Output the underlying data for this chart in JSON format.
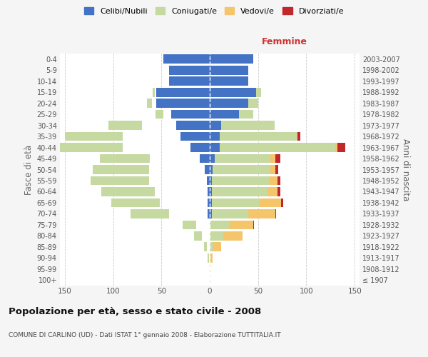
{
  "age_groups": [
    "100+",
    "95-99",
    "90-94",
    "85-89",
    "80-84",
    "75-79",
    "70-74",
    "65-69",
    "60-64",
    "55-59",
    "50-54",
    "45-49",
    "40-44",
    "35-39",
    "30-34",
    "25-29",
    "20-24",
    "15-19",
    "10-14",
    "5-9",
    "0-4"
  ],
  "birth_years": [
    "≤ 1907",
    "1908-1912",
    "1913-1917",
    "1918-1922",
    "1923-1927",
    "1928-1932",
    "1933-1937",
    "1938-1942",
    "1943-1947",
    "1948-1952",
    "1953-1957",
    "1958-1962",
    "1963-1967",
    "1968-1972",
    "1973-1977",
    "1978-1982",
    "1983-1987",
    "1988-1992",
    "1993-1997",
    "1998-2002",
    "2003-2007"
  ],
  "male_celibi": [
    0,
    0,
    0,
    0,
    0,
    0,
    2,
    2,
    2,
    3,
    5,
    10,
    20,
    30,
    35,
    40,
    55,
    55,
    42,
    42,
    48
  ],
  "male_coniugati": [
    0,
    0,
    1,
    3,
    8,
    14,
    40,
    50,
    55,
    60,
    58,
    52,
    70,
    60,
    35,
    8,
    5,
    2,
    0,
    0,
    0
  ],
  "male_vedovi": [
    0,
    0,
    0,
    1,
    4,
    5,
    5,
    3,
    2,
    1,
    1,
    1,
    1,
    0,
    0,
    0,
    0,
    0,
    0,
    0,
    0
  ],
  "male_divorziati": [
    0,
    0,
    0,
    0,
    0,
    0,
    0,
    1,
    3,
    3,
    2,
    4,
    8,
    2,
    1,
    1,
    0,
    0,
    0,
    0,
    0
  ],
  "female_nubili": [
    0,
    0,
    0,
    0,
    0,
    0,
    2,
    2,
    2,
    2,
    3,
    5,
    10,
    10,
    12,
    30,
    40,
    48,
    40,
    40,
    45
  ],
  "female_coniugate": [
    0,
    0,
    1,
    4,
    14,
    20,
    38,
    50,
    58,
    60,
    60,
    58,
    120,
    80,
    55,
    15,
    10,
    5,
    0,
    0,
    0
  ],
  "female_vedove": [
    0,
    1,
    2,
    8,
    20,
    25,
    28,
    22,
    10,
    8,
    5,
    5,
    2,
    1,
    0,
    0,
    0,
    0,
    0,
    0,
    0
  ],
  "female_divorziate": [
    0,
    0,
    0,
    0,
    0,
    1,
    1,
    2,
    3,
    3,
    3,
    5,
    8,
    3,
    0,
    0,
    0,
    0,
    0,
    0,
    0
  ],
  "colors": {
    "celibi_nubili": "#4472C4",
    "coniugati_e": "#C5D9A0",
    "vedovi_e": "#F5C56B",
    "divorziati_e": "#C0282C"
  },
  "title": "Popolazione per età, sesso e stato civile - 2008",
  "subtitle": "COMUNE DI CARLINO (UD) - Dati ISTAT 1° gennaio 2008 - Elaborazione TUTTITALIA.IT",
  "xlabel_right": "Femmine",
  "ylabel_left": "Fasce di età",
  "ylabel_right": "Anni di nascita",
  "xlim": 155,
  "bg_color": "#f5f5f5",
  "plot_bg": "#ffffff",
  "legend_labels": [
    "Celibi/Nubili",
    "Coniugati/e",
    "Vedovi/e",
    "Divorziati/e"
  ]
}
